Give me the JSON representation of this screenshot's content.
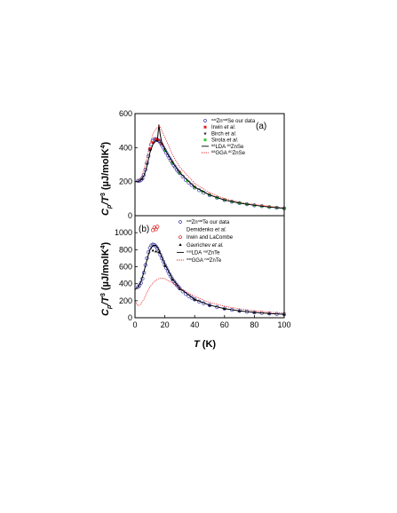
{
  "chart_data": [
    {
      "type": "line",
      "panel_label": "(a)",
      "ylabel": "C_p/T^3 (µJ/molK^4)",
      "ylabel_parts": {
        "c": "C",
        "p": "p",
        "t": "/T",
        "three": "3",
        "unit_open": " (µJ/molK",
        "four": "4",
        "unit_close": ")"
      },
      "xlim": [
        0,
        100
      ],
      "ylim": [
        0,
        600
      ],
      "yticks": [
        "0",
        "200",
        "400",
        "600"
      ],
      "legend": [
        {
          "key": "ours",
          "sup": "nat",
          "text1": "Zn",
          "sup2": "nat",
          "text2": "Se our data",
          "marker": "open-circle",
          "color": "#3a3aaa"
        },
        {
          "key": "irwin",
          "text1": "Irwin ",
          "italic": "et al.",
          "marker": "square",
          "color": "#e31a1c"
        },
        {
          "key": "birch",
          "text1": "Birch ",
          "italic": "et al.",
          "marker": "star",
          "color": "#222222"
        },
        {
          "key": "sirota",
          "text1": "Sirota ",
          "italic": "et al.",
          "marker": "square",
          "color": "#33cc33"
        },
        {
          "key": "lda",
          "text1": "LDA ",
          "sup": "68",
          "text2": "Zn",
          "sup2": "80",
          "text3": "Se",
          "marker": "line",
          "color": "#000000"
        },
        {
          "key": "gga",
          "text1": "GGA ",
          "sup": "68",
          "text2": "Zn",
          "sup2": "80",
          "text3": "Se",
          "marker": "dotted",
          "color": "#e31a1c"
        }
      ],
      "series": [
        {
          "key": "ours",
          "style": "open-circle",
          "color": "#3a3aaa",
          "x": [
            2,
            3,
            4,
            5,
            6,
            7,
            8,
            9,
            10,
            11,
            12,
            13,
            14,
            15,
            16,
            17,
            18,
            19,
            20,
            21,
            22,
            23,
            24,
            25,
            26,
            27,
            28,
            29,
            30,
            32,
            34,
            36,
            38,
            40,
            43,
            46,
            50,
            55,
            60,
            65,
            70,
            75,
            80,
            85,
            90,
            95,
            100
          ],
          "y": [
            205,
            205,
            210,
            220,
            240,
            270,
            310,
            350,
            390,
            420,
            440,
            450,
            450,
            445,
            440,
            430,
            415,
            400,
            385,
            370,
            355,
            340,
            325,
            310,
            295,
            285,
            270,
            260,
            250,
            230,
            210,
            195,
            180,
            165,
            150,
            135,
            120,
            105,
            92,
            82,
            74,
            67,
            61,
            56,
            51,
            47,
            43
          ]
        },
        {
          "key": "irwin",
          "style": "square",
          "color": "#e31a1c",
          "x": [
            10,
            12,
            14,
            16,
            18,
            20,
            25,
            30,
            40,
            50,
            60
          ],
          "y": [
            395,
            430,
            450,
            445,
            420,
            390,
            315,
            255,
            170,
            125,
            95
          ]
        },
        {
          "key": "birch",
          "style": "star",
          "color": "#222222",
          "x": [
            5,
            8,
            10,
            15,
            17,
            20,
            25,
            30
          ],
          "y": [
            215,
            305,
            385,
            440,
            430,
            390,
            315,
            255
          ]
        },
        {
          "key": "sirota",
          "style": "square",
          "color": "#33cc33",
          "x": [
            20,
            25,
            30,
            35,
            40,
            45,
            50,
            55,
            60,
            65,
            70,
            75,
            80,
            85,
            90,
            95,
            100
          ],
          "y": [
            385,
            310,
            250,
            205,
            167,
            143,
            122,
            106,
            93,
            83,
            74,
            67,
            61,
            56,
            51,
            47,
            43
          ]
        },
        {
          "key": "lda",
          "style": "line",
          "color": "#000000",
          "x": [
            0,
            2,
            4,
            6,
            8,
            10,
            12,
            14,
            15,
            16,
            17,
            18,
            20,
            25,
            30,
            40,
            50,
            60,
            70,
            80,
            90,
            100
          ],
          "y": [
            200,
            200,
            210,
            235,
            290,
            370,
            420,
            440,
            440,
            535,
            470,
            430,
            390,
            315,
            252,
            168,
            122,
            92,
            74,
            61,
            51,
            43
          ]
        },
        {
          "key": "gga",
          "style": "dotted",
          "color": "#e31a1c",
          "x": [
            0,
            2,
            4,
            6,
            8,
            10,
            12,
            14,
            16,
            17,
            18,
            20,
            25,
            30,
            40,
            50,
            60,
            70,
            80,
            90,
            100
          ],
          "y": [
            200,
            205,
            225,
            270,
            340,
            420,
            480,
            510,
            525,
            520,
            500,
            460,
            360,
            285,
            190,
            135,
            100,
            80,
            66,
            55,
            46
          ]
        }
      ]
    },
    {
      "type": "line",
      "panel_label": "(b)",
      "xlabel": "T (K)",
      "xlabel_parts": {
        "t": "T",
        "unit": " (K)"
      },
      "ylabel": "C_p/T^3 (µJ/molK^4)",
      "ylabel_parts": {
        "c": "C",
        "p": "p",
        "t": "/T",
        "three": "3",
        "unit_open": " (µJ/molK",
        "four": "4",
        "unit_close": ")"
      },
      "xlim": [
        0,
        100
      ],
      "ylim": [
        0,
        1200
      ],
      "xticks": [
        "0",
        "20",
        "40",
        "60",
        "80",
        "100"
      ],
      "yticks": [
        "0",
        "200",
        "400",
        "600",
        "800",
        "1000"
      ],
      "legend": [
        {
          "key": "ours",
          "sup": "nat",
          "text1": "Zn",
          "sup2": "nat",
          "text2": "Te our data",
          "marker": "open-circle",
          "color": "#3a3aaa"
        },
        {
          "key": "demidenko",
          "text1": "Demidenko ",
          "italic": "et al.",
          "marker": "none",
          "color": "#e31a1c"
        },
        {
          "key": "irwin",
          "text1": "Irwin and LaCombe",
          "marker": "open-circle",
          "color": "#e31a1c"
        },
        {
          "key": "gavrichev",
          "text1": "Gavrichev  ",
          "italic": "et al.",
          "marker": "triangle",
          "color": "#000000"
        },
        {
          "key": "lda",
          "text1": "LDA ",
          "sup": "nat",
          "text2": "Zn",
          "sup2": "nat",
          "text3": "Te",
          "marker": "line",
          "color": "#000000"
        },
        {
          "key": "gga",
          "text1": "GGA ",
          "sup": "nat",
          "text2": "Zn",
          "sup2": "nat",
          "text3": "Te",
          "marker": "dotted",
          "color": "#e31a1c"
        }
      ],
      "series": [
        {
          "key": "ours",
          "style": "open-circle",
          "color": "#3a3aaa",
          "x": [
            2,
            3,
            4,
            5,
            6,
            7,
            8,
            9,
            10,
            11,
            12,
            13,
            14,
            15,
            16,
            17,
            18,
            19,
            20,
            21,
            22,
            23,
            24,
            25,
            26,
            27,
            28,
            29,
            30,
            32,
            34,
            36,
            38,
            40,
            43,
            46,
            50,
            55,
            60,
            65,
            70,
            75,
            80,
            85,
            90,
            95,
            100
          ],
          "y": [
            360,
            380,
            410,
            460,
            530,
            620,
            700,
            770,
            820,
            850,
            860,
            855,
            840,
            815,
            780,
            740,
            700,
            660,
            620,
            585,
            550,
            515,
            485,
            455,
            430,
            405,
            385,
            365,
            345,
            310,
            280,
            255,
            235,
            215,
            190,
            170,
            148,
            125,
            107,
            93,
            81,
            71,
            63,
            56,
            50,
            45,
            41
          ]
        },
        {
          "key": "irwin",
          "style": "open-circle",
          "color": "#e31a1c",
          "x": [
            12,
            13,
            14,
            15
          ],
          "y": [
            1030,
            1060,
            1040,
            1070
          ]
        },
        {
          "key": "gavrichev",
          "style": "triangle",
          "color": "#000000",
          "x": [
            12,
            14,
            16,
            20,
            25,
            30,
            40,
            50,
            60,
            70,
            80,
            90,
            100
          ],
          "y": [
            790,
            780,
            770,
            610,
            450,
            340,
            212,
            145,
            105,
            80,
            62,
            50,
            41
          ]
        },
        {
          "key": "lda",
          "style": "line",
          "color": "#000000",
          "x": [
            0,
            2,
            4,
            6,
            8,
            10,
            12,
            14,
            16,
            18,
            20,
            25,
            30,
            40,
            50,
            60,
            70,
            80,
            90,
            100
          ],
          "y": [
            330,
            360,
            420,
            540,
            680,
            800,
            850,
            850,
            800,
            710,
            630,
            460,
            345,
            215,
            148,
            107,
            81,
            63,
            50,
            41
          ]
        },
        {
          "key": "gga",
          "style": "dotted",
          "color": "#e31a1c",
          "x": [
            0,
            2,
            4,
            6,
            8,
            10,
            12,
            14,
            16,
            18,
            20,
            22,
            25,
            30,
            40,
            50,
            60,
            70,
            80,
            90,
            100
          ],
          "y": [
            200,
            140,
            160,
            220,
            300,
            360,
            410,
            440,
            460,
            465,
            460,
            440,
            410,
            350,
            250,
            180,
            135,
            105,
            82,
            66,
            54
          ]
        }
      ]
    }
  ]
}
